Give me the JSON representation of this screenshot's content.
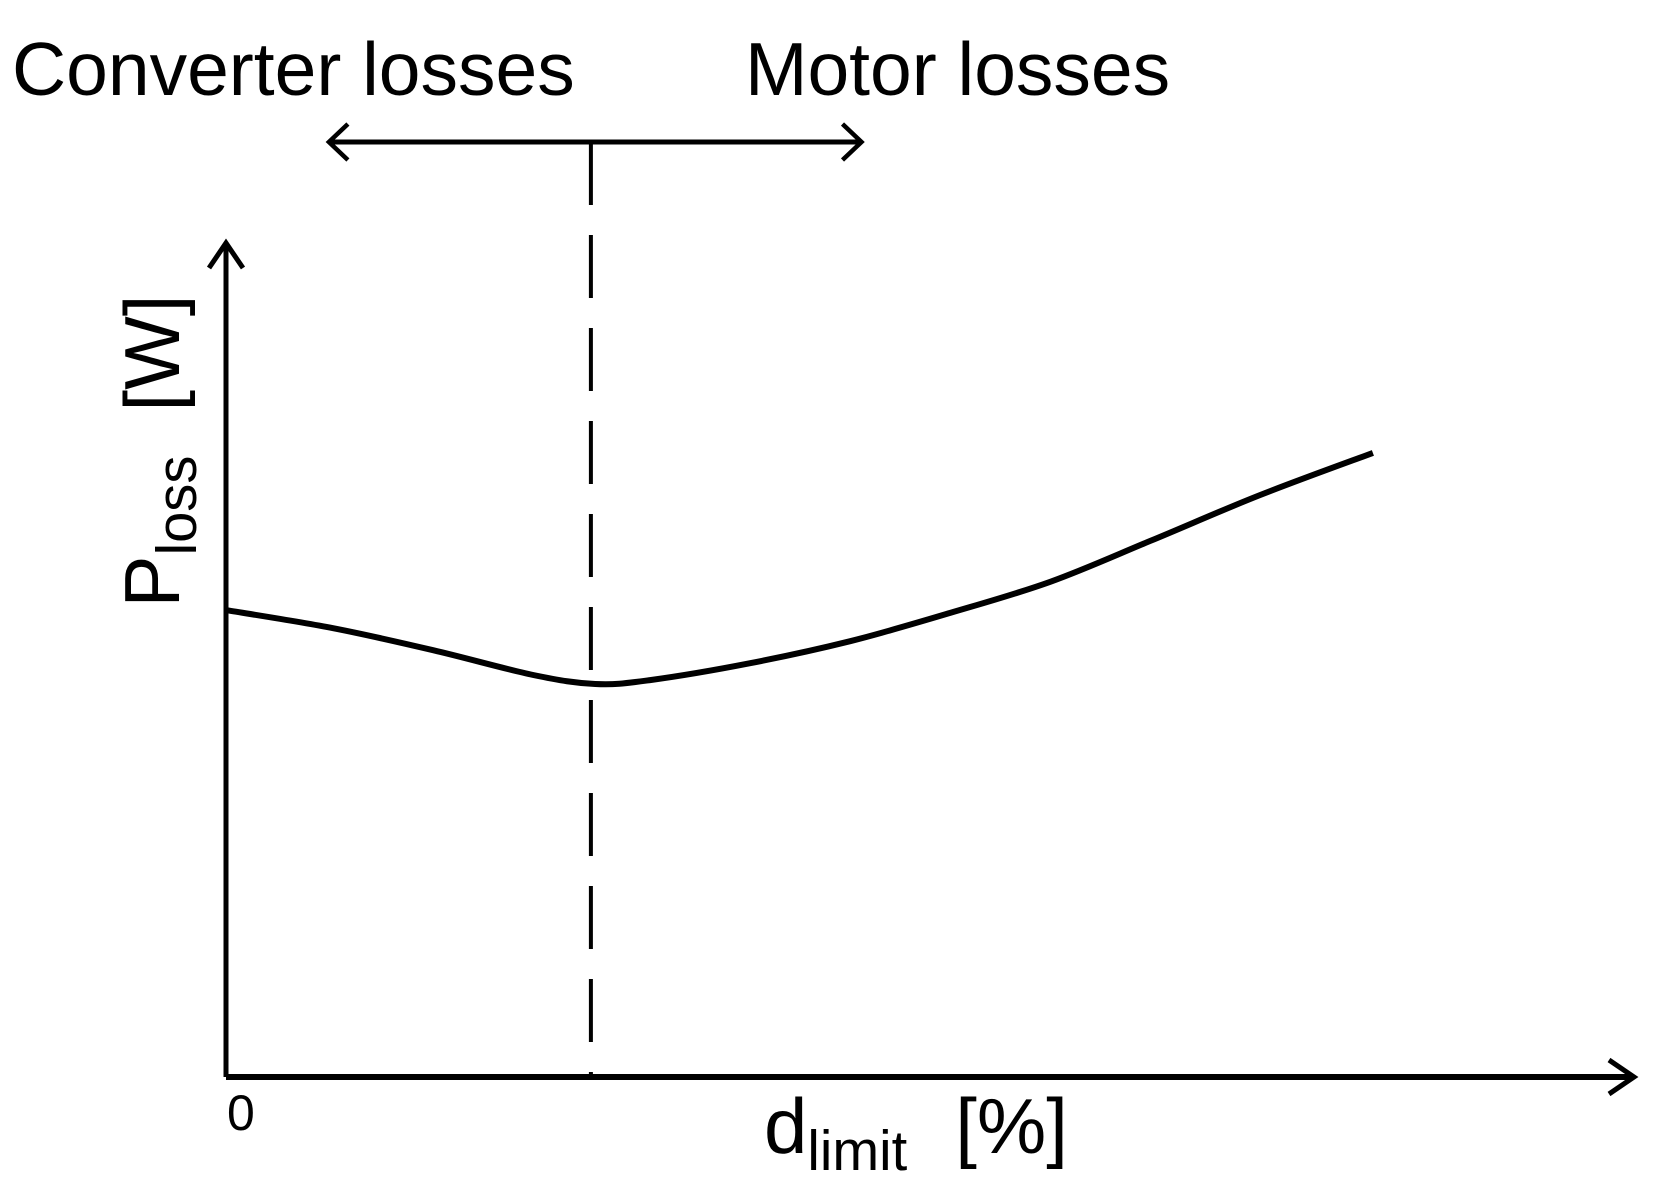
{
  "figure": {
    "region_labels": {
      "left": "Converter losses",
      "right": "Motor losses"
    },
    "y_axis": {
      "symbol": "P",
      "subscript": "loss",
      "unit": "[W]"
    },
    "x_axis": {
      "symbol": "d",
      "subscript": "limit",
      "unit": "[%]",
      "origin_tick_label": "0"
    },
    "colors": {
      "ink": "#000000",
      "background": "#ffffff"
    }
  },
  "chart_data": {
    "type": "line",
    "title": "",
    "xlabel": "d_limit [%]",
    "ylabel": "P_loss [W]",
    "x_tick_labels": [
      "0"
    ],
    "grid": false,
    "legend": false,
    "axes": {
      "x_arrow": true,
      "y_arrow": true,
      "numeric_scale_shown": false
    },
    "series": [
      {
        "name": "P_loss",
        "x_frac": [
          0.0,
          0.076,
          0.147,
          0.218,
          0.262,
          0.301,
          0.372,
          0.443,
          0.514,
          0.585,
          0.656,
          0.734,
          0.814
        ],
        "y_rel": [
          1.188,
          1.142,
          1.086,
          1.023,
          1.0,
          1.01,
          1.053,
          1.109,
          1.181,
          1.26,
          1.364,
          1.481,
          1.588
        ]
      }
    ],
    "annotations": [
      {
        "type": "vline_dashed",
        "x_frac": 0.259
      },
      {
        "type": "double_arrow",
        "x_frac_from": 0.073,
        "x_frac_to": 0.451,
        "label_left": "Converter losses",
        "label_right": "Motor losses"
      }
    ]
  }
}
